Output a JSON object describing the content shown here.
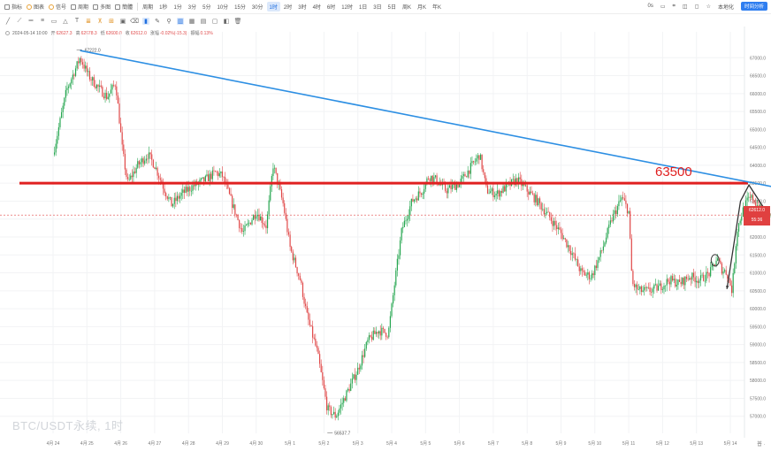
{
  "toolbar": {
    "items": [
      {
        "label": "指标",
        "icon": "indicator-icon"
      },
      {
        "label": "图表",
        "icon": "chart-style-icon"
      },
      {
        "label": "信号",
        "icon": "signal-icon"
      },
      {
        "label": "周期",
        "icon": "calendar-icon"
      },
      {
        "label": "多图",
        "icon": "multi-chart-icon"
      },
      {
        "label": "簡體",
        "icon": "language-icon"
      }
    ],
    "period_label": "周期",
    "intervals": [
      "1秒",
      "1分",
      "3分",
      "5分",
      "10分",
      "15分",
      "30分",
      "1时",
      "2时",
      "3时",
      "4时",
      "6时",
      "12时",
      "1日",
      "3日",
      "5日",
      "周K",
      "月K",
      "年K"
    ],
    "active_interval": "1时",
    "right_items": [
      "0s",
      "▭",
      "⌗",
      "◫",
      "◻",
      "☆",
      "本地化"
    ],
    "right_button": "时间分析"
  },
  "info": {
    "datetime": "2024-05-14 10:00",
    "fields": [
      {
        "label": "开",
        "value": "62627.3"
      },
      {
        "label": "高",
        "value": "62678.3"
      },
      {
        "label": "低",
        "value": "62600.0"
      },
      {
        "label": "收",
        "value": "62612.0"
      },
      {
        "label": "涨幅",
        "value": "-0.02%(-15.3)"
      },
      {
        "label": "振幅",
        "value": "0.13%"
      }
    ]
  },
  "watermark": "BTC/USDT永续, 1时",
  "annotation": {
    "text": "63500",
    "color": "#e02020"
  },
  "price_tag": {
    "price": "62612.0",
    "countdown": "55:36",
    "color": "#e04040"
  },
  "corner_label": "普 ·",
  "colors": {
    "up": "#26a650",
    "down": "#e04848",
    "trendline": "#2d8fe3",
    "level": "#e02020",
    "arrow": "#333333"
  },
  "chart_data": {
    "type": "candlestick",
    "symbol": "BTC/USDT",
    "interval": "1时",
    "ylim": [
      56500,
      67500
    ],
    "y_ticks": [
      57000,
      57500,
      58000,
      58500,
      59000,
      59500,
      60000,
      60500,
      61000,
      61500,
      62000,
      62500,
      63000,
      63500,
      64000,
      64500,
      65000,
      65500,
      66000,
      66500,
      67000
    ],
    "x_labels": [
      "4月 24",
      "4月 25",
      "4月 26",
      "4月 27",
      "4月 28",
      "4月 29",
      "4月 30",
      "5月 1",
      "5月 2",
      "5月 3",
      "5月 4",
      "5月 5",
      "5月 6",
      "5月 7",
      "5月 8",
      "5月 9",
      "5月 10",
      "5月 11",
      "5月 12",
      "5月 13",
      "5月 14"
    ],
    "x_label_format": "{0} {1}",
    "high_label": "67222.0",
    "low_label": "56537.7",
    "anchors": [
      [
        0,
        64300
      ],
      [
        0.4,
        66100
      ],
      [
        0.8,
        67000
      ],
      [
        1.05,
        66500
      ],
      [
        1.3,
        66200
      ],
      [
        1.6,
        65900
      ],
      [
        1.85,
        66300
      ],
      [
        2.05,
        64400
      ],
      [
        2.2,
        63500
      ],
      [
        2.5,
        64000
      ],
      [
        2.8,
        64300
      ],
      [
        3.0,
        64000
      ],
      [
        3.3,
        63300
      ],
      [
        3.5,
        62900
      ],
      [
        3.8,
        63200
      ],
      [
        4.1,
        63400
      ],
      [
        4.5,
        63600
      ],
      [
        4.8,
        63800
      ],
      [
        5.0,
        63700
      ],
      [
        5.3,
        62900
      ],
      [
        5.6,
        62100
      ],
      [
        6.0,
        62700
      ],
      [
        6.3,
        62300
      ],
      [
        6.5,
        64000
      ],
      [
        6.8,
        62900
      ],
      [
        7.0,
        61700
      ],
      [
        7.3,
        60800
      ],
      [
        7.5,
        59800
      ],
      [
        7.8,
        58800
      ],
      [
        8.1,
        57200
      ],
      [
        8.35,
        57000
      ],
      [
        8.7,
        57700
      ],
      [
        9.0,
        58300
      ],
      [
        9.3,
        59100
      ],
      [
        9.6,
        59400
      ],
      [
        9.9,
        59300
      ],
      [
        10.1,
        60800
      ],
      [
        10.3,
        62200
      ],
      [
        10.6,
        63000
      ],
      [
        10.9,
        63300
      ],
      [
        11.1,
        63700
      ],
      [
        11.3,
        63600
      ],
      [
        11.6,
        63300
      ],
      [
        12.0,
        63500
      ],
      [
        12.3,
        63900
      ],
      [
        12.6,
        64300
      ],
      [
        12.8,
        63300
      ],
      [
        13.1,
        63200
      ],
      [
        13.4,
        63400
      ],
      [
        13.7,
        63600
      ],
      [
        14.0,
        63300
      ],
      [
        14.3,
        63000
      ],
      [
        14.7,
        62500
      ],
      [
        15.0,
        62100
      ],
      [
        15.3,
        61600
      ],
      [
        15.6,
        61000
      ],
      [
        15.9,
        60900
      ],
      [
        16.2,
        61600
      ],
      [
        16.5,
        62500
      ],
      [
        16.8,
        63100
      ],
      [
        17.0,
        62700
      ],
      [
        17.1,
        60700
      ],
      [
        17.3,
        60500
      ],
      [
        17.6,
        60500
      ],
      [
        17.9,
        60600
      ],
      [
        18.2,
        60800
      ],
      [
        18.5,
        60700
      ],
      [
        18.8,
        60900
      ],
      [
        19.1,
        60800
      ],
      [
        19.4,
        61000
      ],
      [
        19.6,
        61400
      ],
      [
        19.75,
        61100
      ],
      [
        19.9,
        61000
      ],
      [
        20.05,
        60500
      ],
      [
        20.2,
        62200
      ],
      [
        20.35,
        62700
      ],
      [
        20.5,
        63000
      ],
      [
        20.65,
        63100
      ],
      [
        20.85,
        62800
      ],
      [
        21.1,
        62600
      ],
      [
        21.25,
        62612
      ]
    ],
    "trend_line": {
      "from": [
        0.8,
        67200
      ],
      "to": [
        21.8,
        63300
      ]
    },
    "horizontal_level": 63500,
    "current_price_line": 62612,
    "marker_circle": [
      19.55,
      61350
    ],
    "arrow_path": [
      [
        19.9,
        60550
      ],
      [
        20.3,
        63000
      ],
      [
        20.55,
        63450
      ],
      [
        21.1,
        62650
      ]
    ]
  }
}
